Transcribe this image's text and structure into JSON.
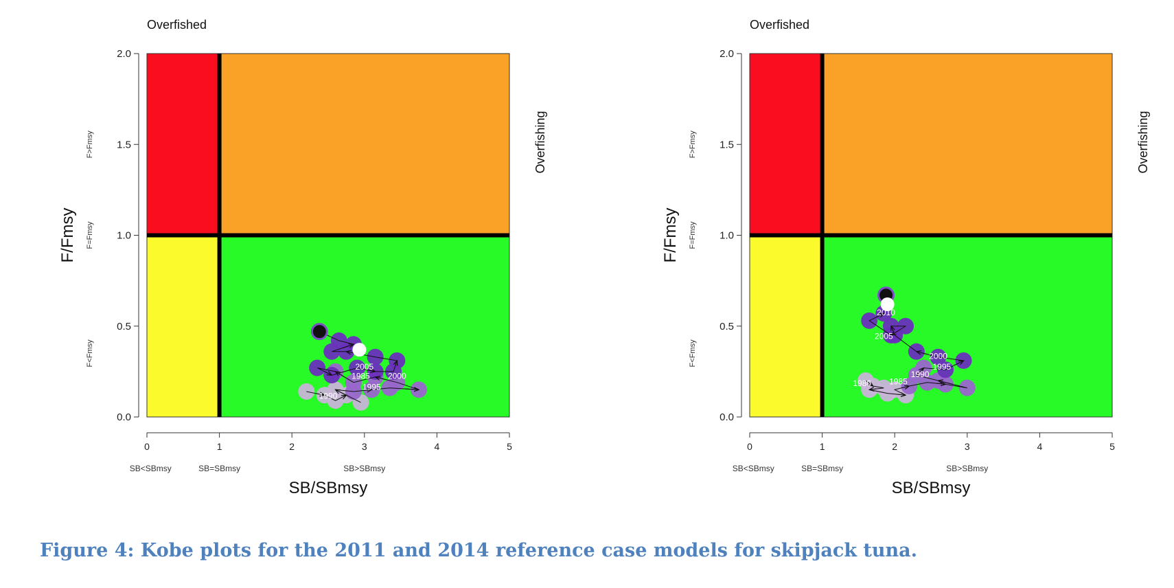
{
  "caption": "Figure 4: Kobe plots for the 2011 and 2014 reference case models for skipjack tuna.",
  "colors": {
    "overfished_overfishing": "#fa0d1e",
    "overfishing": "#faa127",
    "overfished": "#fafa2c",
    "healthy": "#27fa27",
    "trajectory_early": "#c8b4d8",
    "trajectory_mid": "#9966cc",
    "trajectory_late": "#6a2fbd",
    "caption": "#4f81bd"
  },
  "chart_data": [
    {
      "type": "scatter",
      "title": "",
      "top_label": "Overfished",
      "right_label": "Overfishing",
      "xlabel": "SB/SBmsy",
      "ylabel": "F/Fmsy",
      "xlim": [
        0,
        5
      ],
      "ylim": [
        0,
        2
      ],
      "xticks": [
        "0",
        "1",
        "2",
        "3",
        "4",
        "5"
      ],
      "yticks": [
        "0.0",
        "0.5",
        "1.0",
        "1.5",
        "2.0"
      ],
      "x_region_labels": [
        {
          "text": "SB<SBmsy",
          "x": 0.05
        },
        {
          "text": "SB=SBmsy",
          "x": 1.0
        },
        {
          "text": "SB>SBmsy",
          "x": 3.0
        }
      ],
      "y_region_labels": [
        {
          "text": "F>Fmsy",
          "y": 1.5
        },
        {
          "text": "F=Fmsy",
          "y": 1.0
        },
        {
          "text": "F<Fmsy",
          "y": 0.35
        }
      ],
      "reference_lines": {
        "x": 1,
        "y": 1
      },
      "quadrant_colors": [
        "#fa0d1e",
        "#faa127",
        "#fafa2c",
        "#27fa27"
      ],
      "trajectory": [
        {
          "x": 2.2,
          "y": 0.14,
          "shade": "early"
        },
        {
          "x": 2.45,
          "y": 0.12,
          "shade": "early"
        },
        {
          "x": 2.6,
          "y": 0.09,
          "shade": "early"
        },
        {
          "x": 2.75,
          "y": 0.12,
          "shade": "early"
        },
        {
          "x": 2.95,
          "y": 0.08,
          "shade": "early"
        },
        {
          "x": 2.6,
          "y": 0.15,
          "shade": "early"
        },
        {
          "x": 2.85,
          "y": 0.14,
          "shade": "mid"
        },
        {
          "x": 3.1,
          "y": 0.15,
          "shade": "mid"
        },
        {
          "x": 3.35,
          "y": 0.16,
          "shade": "mid"
        },
        {
          "x": 3.75,
          "y": 0.15,
          "shade": "mid"
        },
        {
          "x": 3.45,
          "y": 0.19,
          "shade": "mid"
        },
        {
          "x": 3.15,
          "y": 0.22,
          "shade": "mid"
        },
        {
          "x": 2.85,
          "y": 0.19,
          "shade": "mid"
        },
        {
          "x": 2.6,
          "y": 0.25,
          "shade": "mid"
        },
        {
          "x": 2.35,
          "y": 0.27,
          "shade": "late"
        },
        {
          "x": 2.55,
          "y": 0.23,
          "shade": "late"
        },
        {
          "x": 2.9,
          "y": 0.27,
          "shade": "late"
        },
        {
          "x": 3.15,
          "y": 0.25,
          "shade": "late"
        },
        {
          "x": 3.4,
          "y": 0.25,
          "shade": "late"
        },
        {
          "x": 3.45,
          "y": 0.31,
          "shade": "late"
        },
        {
          "x": 3.15,
          "y": 0.33,
          "shade": "late"
        },
        {
          "x": 2.75,
          "y": 0.36,
          "shade": "late"
        },
        {
          "x": 2.55,
          "y": 0.36,
          "shade": "late"
        },
        {
          "x": 2.85,
          "y": 0.4,
          "shade": "late"
        },
        {
          "x": 2.65,
          "y": 0.42,
          "shade": "late"
        },
        {
          "x": 2.38,
          "y": 0.47,
          "shade": "late"
        }
      ],
      "start_point": {
        "x": 2.38,
        "y": 0.47
      },
      "end_point": {
        "x": 2.93,
        "y": 0.37
      },
      "year_labels": [
        {
          "text": "2005",
          "x": 3.0,
          "y": 0.26
        },
        {
          "text": "1985",
          "x": 2.95,
          "y": 0.21
        },
        {
          "text": "2000",
          "x": 3.45,
          "y": 0.21
        },
        {
          "text": "1995",
          "x": 3.1,
          "y": 0.15
        },
        {
          "text": "1990",
          "x": 2.5,
          "y": 0.1
        }
      ]
    },
    {
      "type": "scatter",
      "title": "",
      "top_label": "Overfished",
      "right_label": "Overfishing",
      "xlabel": "SB/SBmsy",
      "ylabel": "F/Fmsy",
      "xlim": [
        0,
        5
      ],
      "ylim": [
        0,
        2
      ],
      "xticks": [
        "0",
        "1",
        "2",
        "3",
        "4",
        "5"
      ],
      "yticks": [
        "0.0",
        "0.5",
        "1.0",
        "1.5",
        "2.0"
      ],
      "x_region_labels": [
        {
          "text": "SB<SBmsy",
          "x": 0.05
        },
        {
          "text": "SB=SBmsy",
          "x": 1.0
        },
        {
          "text": "SB>SBmsy",
          "x": 3.0
        }
      ],
      "y_region_labels": [
        {
          "text": "F>Fmsy",
          "y": 1.5
        },
        {
          "text": "F=Fmsy",
          "y": 1.0
        },
        {
          "text": "F<Fmsy",
          "y": 0.35
        }
      ],
      "reference_lines": {
        "x": 1,
        "y": 1
      },
      "quadrant_colors": [
        "#fa0d1e",
        "#faa127",
        "#fafa2c",
        "#27fa27"
      ],
      "trajectory": [
        {
          "x": 1.6,
          "y": 0.2,
          "shade": "early"
        },
        {
          "x": 1.7,
          "y": 0.17,
          "shade": "early"
        },
        {
          "x": 1.85,
          "y": 0.16,
          "shade": "early"
        },
        {
          "x": 1.65,
          "y": 0.15,
          "shade": "early"
        },
        {
          "x": 1.9,
          "y": 0.13,
          "shade": "early"
        },
        {
          "x": 2.15,
          "y": 0.12,
          "shade": "early"
        },
        {
          "x": 2.0,
          "y": 0.15,
          "shade": "early"
        },
        {
          "x": 2.2,
          "y": 0.17,
          "shade": "mid"
        },
        {
          "x": 2.45,
          "y": 0.19,
          "shade": "mid"
        },
        {
          "x": 2.7,
          "y": 0.18,
          "shade": "mid"
        },
        {
          "x": 3.0,
          "y": 0.16,
          "shade": "mid"
        },
        {
          "x": 2.6,
          "y": 0.2,
          "shade": "mid"
        },
        {
          "x": 2.3,
          "y": 0.23,
          "shade": "mid"
        },
        {
          "x": 2.4,
          "y": 0.27,
          "shade": "mid"
        },
        {
          "x": 2.7,
          "y": 0.26,
          "shade": "late"
        },
        {
          "x": 2.95,
          "y": 0.31,
          "shade": "late"
        },
        {
          "x": 2.6,
          "y": 0.33,
          "shade": "late"
        },
        {
          "x": 2.3,
          "y": 0.36,
          "shade": "late"
        },
        {
          "x": 2.0,
          "y": 0.45,
          "shade": "late"
        },
        {
          "x": 1.95,
          "y": 0.5,
          "shade": "late"
        },
        {
          "x": 2.15,
          "y": 0.5,
          "shade": "late"
        },
        {
          "x": 1.95,
          "y": 0.45,
          "shade": "late"
        },
        {
          "x": 1.65,
          "y": 0.53,
          "shade": "late"
        },
        {
          "x": 1.85,
          "y": 0.57,
          "shade": "late"
        },
        {
          "x": 1.88,
          "y": 0.67,
          "shade": "late"
        }
      ],
      "start_point": {
        "x": 1.88,
        "y": 0.67
      },
      "end_point": {
        "x": 1.9,
        "y": 0.62
      },
      "year_labels": [
        {
          "text": "2010",
          "x": 1.88,
          "y": 0.56
        },
        {
          "text": "2005",
          "x": 1.85,
          "y": 0.43
        },
        {
          "text": "2000",
          "x": 2.6,
          "y": 0.32
        },
        {
          "text": "1995",
          "x": 2.65,
          "y": 0.26
        },
        {
          "text": "1990",
          "x": 2.35,
          "y": 0.22
        },
        {
          "text": "1985",
          "x": 2.05,
          "y": 0.18
        },
        {
          "text": "1980",
          "x": 1.55,
          "y": 0.17
        }
      ]
    }
  ]
}
